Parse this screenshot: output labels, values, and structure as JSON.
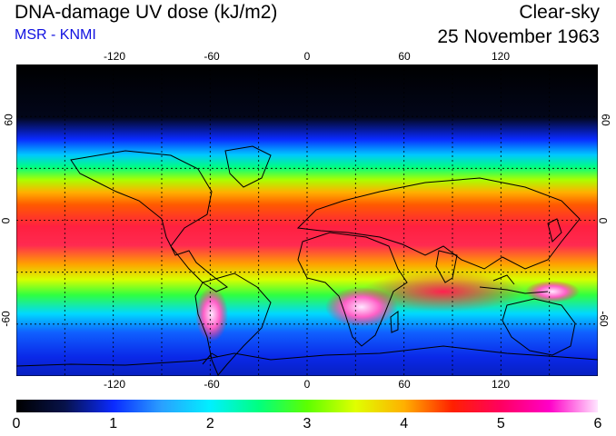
{
  "title": "DNA-damage UV dose (kJ/m2)",
  "subtitle": "MSR - KNMI",
  "sky": "Clear-sky",
  "date": "25 November 1963",
  "lon_ticks": [
    "-120",
    "-60",
    "0",
    "60",
    "120"
  ],
  "lat_ticks": [
    "60",
    "0",
    "-60"
  ],
  "colorbar": {
    "labels": [
      "0",
      "1",
      "2",
      "3",
      "4",
      "5",
      "6"
    ],
    "min": 0,
    "max": 6,
    "stops": [
      "#000000",
      "#07124a",
      "#0a2aff",
      "#2aa0ff",
      "#00f0ff",
      "#00ff80",
      "#5cff00",
      "#e0ff00",
      "#ffb000",
      "#ff2000",
      "#ff0060",
      "#ff00c8",
      "#ffe6ff"
    ]
  },
  "map": {
    "lon_range": [
      -180,
      180
    ],
    "lat_range": [
      -90,
      90
    ],
    "colors": {
      "polar_north": "#000000",
      "polar_south": "#0a2aff",
      "tropics": "#ff2060",
      "hotspot": "#ffd0ff",
      "coast": "#000000"
    }
  }
}
